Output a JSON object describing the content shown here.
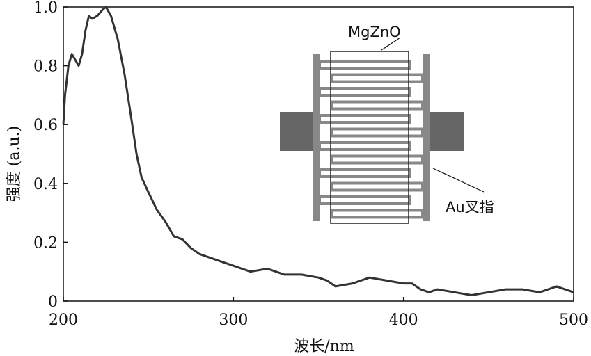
{
  "chart_data": {
    "type": "line",
    "title": "",
    "xlabel": "波长/nm",
    "ylabel": "强度 (a.u.)",
    "xlim": [
      200,
      500
    ],
    "ylim": [
      0,
      1.0
    ],
    "xticks": [
      200,
      300,
      400,
      500
    ],
    "xtick_labels": [
      "200",
      "300",
      "400",
      "500"
    ],
    "yticks": [
      0,
      0.2,
      0.4,
      0.6,
      0.8,
      1.0
    ],
    "ytick_labels": [
      "0",
      "0.2",
      "0.4",
      "0.6",
      "0.8",
      "1.0"
    ],
    "grid": false,
    "line_color": "#333333",
    "series": [
      {
        "name": "",
        "x": [
          200,
          201,
          203,
          205,
          207,
          209,
          211,
          213,
          215,
          217,
          220,
          223,
          225,
          228,
          232,
          236,
          240,
          243,
          246,
          250,
          255,
          260,
          265,
          270,
          275,
          280,
          285,
          290,
          300,
          310,
          320,
          330,
          340,
          350,
          355,
          360,
          370,
          380,
          390,
          400,
          405,
          410,
          415,
          420,
          430,
          440,
          450,
          460,
          470,
          480,
          490,
          500
        ],
        "y": [
          0.6,
          0.7,
          0.8,
          0.84,
          0.82,
          0.8,
          0.84,
          0.92,
          0.97,
          0.96,
          0.97,
          0.99,
          1.0,
          0.97,
          0.89,
          0.77,
          0.62,
          0.5,
          0.42,
          0.37,
          0.31,
          0.27,
          0.22,
          0.21,
          0.18,
          0.16,
          0.15,
          0.14,
          0.12,
          0.1,
          0.11,
          0.09,
          0.09,
          0.08,
          0.07,
          0.05,
          0.06,
          0.08,
          0.07,
          0.06,
          0.06,
          0.04,
          0.03,
          0.04,
          0.03,
          0.02,
          0.03,
          0.04,
          0.04,
          0.03,
          0.05,
          0.03
        ]
      }
    ],
    "inset": {
      "labels": [
        "MgZnO",
        "Au叉指"
      ],
      "colors": {
        "pad": "#666666",
        "electrode": "#888888",
        "film": "#222222"
      }
    }
  }
}
